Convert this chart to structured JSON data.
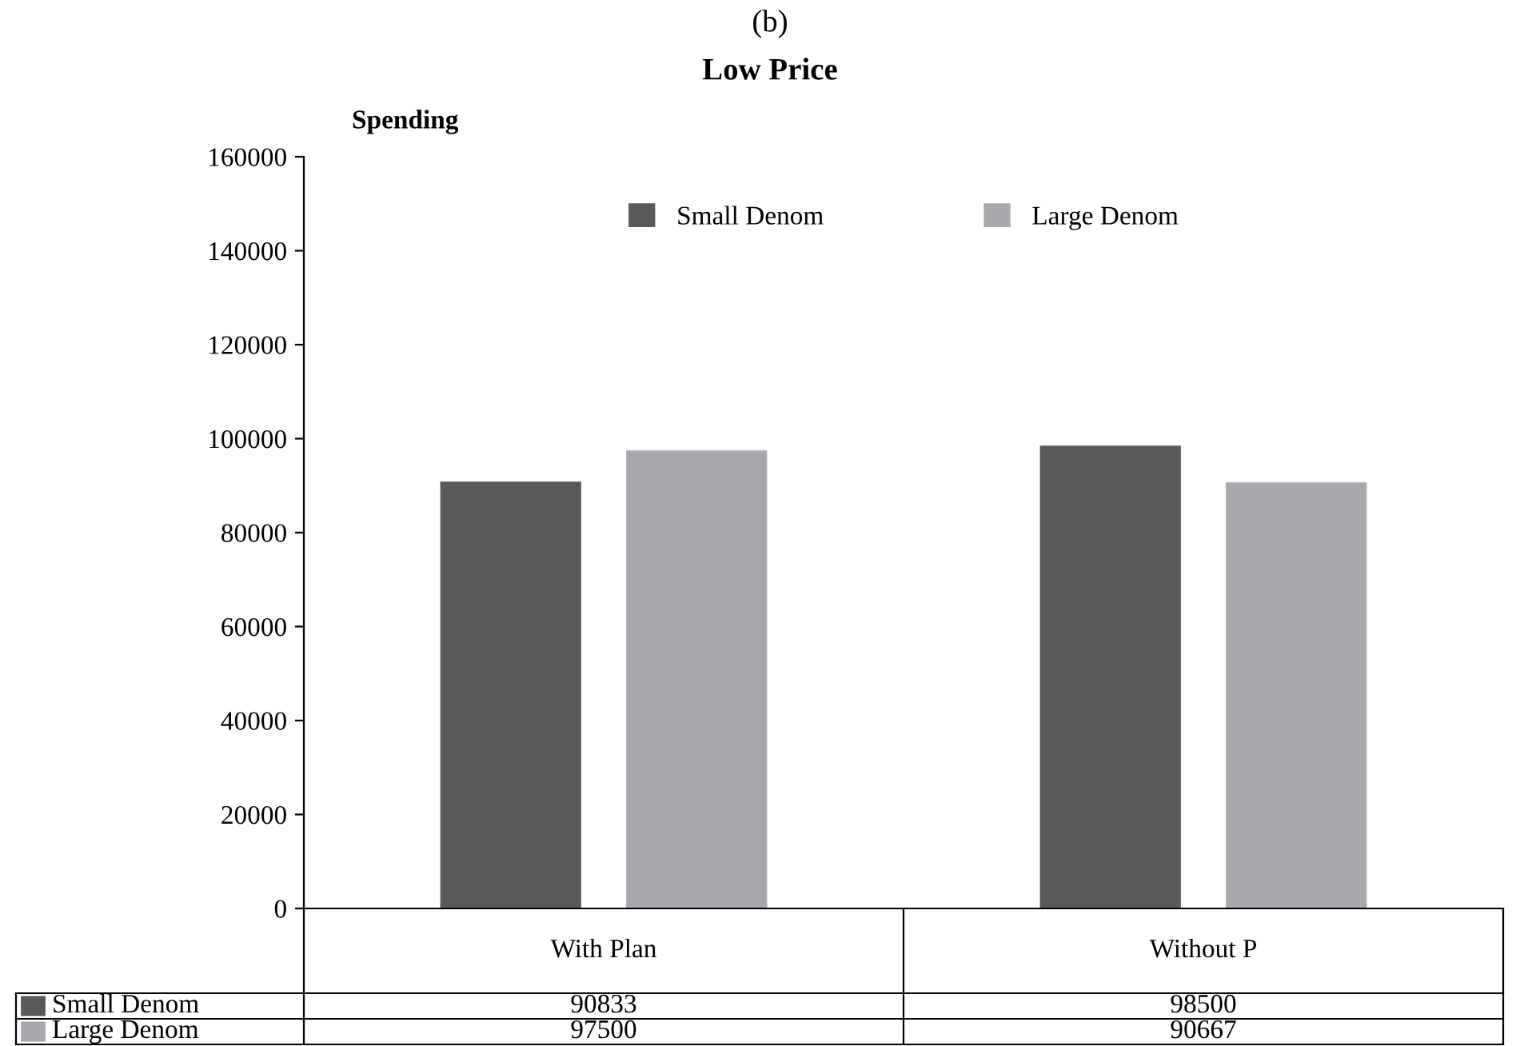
{
  "chart_data": {
    "type": "bar",
    "title": "(b)",
    "subtitle": "Low Price",
    "ylabel": "Spending",
    "categories": [
      "With Plan",
      "Without P"
    ],
    "series": [
      {
        "name": "Small Denom",
        "color": "#58595b",
        "values": [
          90833,
          98500
        ]
      },
      {
        "name": "Large Denom",
        "color": "#a7a9ac",
        "values": [
          97500,
          90667
        ]
      }
    ],
    "ylim": [
      0,
      160000
    ],
    "yticks": [
      0,
      20000,
      40000,
      60000,
      80000,
      100000,
      120000,
      140000,
      160000
    ],
    "grid": false,
    "legend": "top",
    "data_labels": true
  }
}
